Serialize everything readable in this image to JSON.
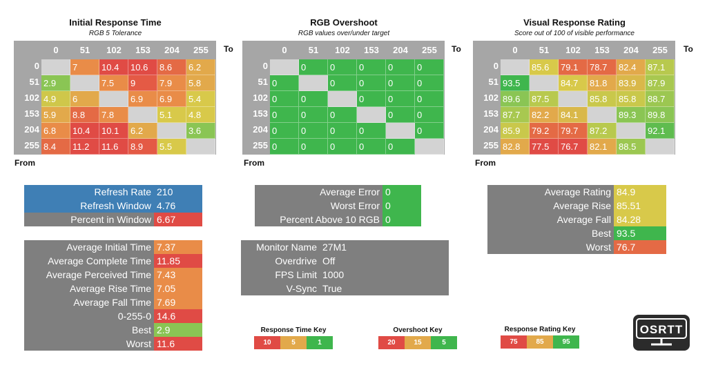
{
  "colors": {
    "header_gray": "#a6a6a6",
    "diag_gray": "#d3d3d3",
    "dark_gray": "#7f7f7f",
    "blue": "#3f7fb5",
    "red": "#e04b45",
    "orange": "#e98c48",
    "amber": "#e2a94b",
    "yellow": "#d8c94a",
    "green": "#3fb64d",
    "lightgreen": "#8ac554"
  },
  "axis": {
    "to": "To",
    "from": "From"
  },
  "chart_data": [
    {
      "type": "heatmap",
      "title": "Initial Response Time",
      "subtitle": "RGB 5 Tolerance",
      "columns": [
        "0",
        "51",
        "102",
        "153",
        "204",
        "255"
      ],
      "rows": [
        "0",
        "51",
        "102",
        "153",
        "204",
        "255"
      ],
      "values": [
        [
          "",
          "7",
          "10.4",
          "10.6",
          "8.6",
          "6.2"
        ],
        [
          "2.9",
          "",
          "7.5",
          "9",
          "7.9",
          "5.8"
        ],
        [
          "4.9",
          "6",
          "",
          "6.9",
          "6.9",
          "5.4"
        ],
        [
          "5.9",
          "8.8",
          "7.8",
          "",
          "5.1",
          "4.8"
        ],
        [
          "6.8",
          "10.4",
          "10.1",
          "6.2",
          "",
          "3.6"
        ],
        [
          "8.4",
          "11.2",
          "11.6",
          "8.9",
          "5.5",
          ""
        ]
      ],
      "colors": [
        [
          "#d3d3d3",
          "#e98c48",
          "#e04b45",
          "#e04b45",
          "#e46a45",
          "#e2a94b"
        ],
        [
          "#8ac554",
          "#d3d3d3",
          "#e98c48",
          "#e45a45",
          "#e98c48",
          "#e2a94b"
        ],
        [
          "#cfc74a",
          "#e2a94b",
          "#d3d3d3",
          "#e98c48",
          "#e98c48",
          "#d8c94a"
        ],
        [
          "#e2a94b",
          "#e46a45",
          "#e98c48",
          "#d3d3d3",
          "#d8c94a",
          "#d8c94a"
        ],
        [
          "#e98c48",
          "#e04b45",
          "#e04b45",
          "#e2a94b",
          "#d3d3d3",
          "#8ac554"
        ],
        [
          "#e46a45",
          "#e04b45",
          "#e04b45",
          "#e45a45",
          "#d8c94a",
          "#d3d3d3"
        ]
      ]
    },
    {
      "type": "heatmap",
      "title": "RGB Overshoot",
      "subtitle": "RGB values over/under target",
      "columns": [
        "0",
        "51",
        "102",
        "153",
        "204",
        "255"
      ],
      "rows": [
        "0",
        "51",
        "102",
        "153",
        "204",
        "255"
      ],
      "values": [
        [
          "",
          "0",
          "0",
          "0",
          "0",
          "0"
        ],
        [
          "0",
          "",
          "0",
          "0",
          "0",
          "0"
        ],
        [
          "0",
          "0",
          "",
          "0",
          "0",
          "0"
        ],
        [
          "0",
          "0",
          "0",
          "",
          "0",
          "0"
        ],
        [
          "0",
          "0",
          "0",
          "0",
          "",
          "0"
        ],
        [
          "0",
          "0",
          "0",
          "0",
          "0",
          ""
        ]
      ],
      "colors": [
        [
          "#d3d3d3",
          "#3fb64d",
          "#3fb64d",
          "#3fb64d",
          "#3fb64d",
          "#3fb64d"
        ],
        [
          "#3fb64d",
          "#d3d3d3",
          "#3fb64d",
          "#3fb64d",
          "#3fb64d",
          "#3fb64d"
        ],
        [
          "#3fb64d",
          "#3fb64d",
          "#d3d3d3",
          "#3fb64d",
          "#3fb64d",
          "#3fb64d"
        ],
        [
          "#3fb64d",
          "#3fb64d",
          "#3fb64d",
          "#d3d3d3",
          "#3fb64d",
          "#3fb64d"
        ],
        [
          "#3fb64d",
          "#3fb64d",
          "#3fb64d",
          "#3fb64d",
          "#d3d3d3",
          "#3fb64d"
        ],
        [
          "#3fb64d",
          "#3fb64d",
          "#3fb64d",
          "#3fb64d",
          "#3fb64d",
          "#d3d3d3"
        ]
      ]
    },
    {
      "type": "heatmap",
      "title": "Visual Response Rating",
      "subtitle": "Score out of 100 of visible performance",
      "columns": [
        "0",
        "51",
        "102",
        "153",
        "204",
        "255"
      ],
      "rows": [
        "0",
        "51",
        "102",
        "153",
        "204",
        "255"
      ],
      "values": [
        [
          "",
          "85.6",
          "79.1",
          "78.7",
          "82.4",
          "87.1"
        ],
        [
          "93.5",
          "",
          "84.7",
          "81.8",
          "83.9",
          "87.9"
        ],
        [
          "89.6",
          "87.5",
          "",
          "85.8",
          "85.8",
          "88.7"
        ],
        [
          "87.7",
          "82.2",
          "84.1",
          "",
          "89.3",
          "89.8"
        ],
        [
          "85.9",
          "79.2",
          "79.7",
          "87.2",
          "",
          "92.1"
        ],
        [
          "82.8",
          "77.5",
          "76.7",
          "82.1",
          "88.5",
          ""
        ]
      ],
      "colors": [
        [
          "#d3d3d3",
          "#d8c94a",
          "#e46a45",
          "#e46a45",
          "#e2a94b",
          "#b8c94e"
        ],
        [
          "#3fb64d",
          "#d3d3d3",
          "#d8c94a",
          "#e2a94b",
          "#d9b84a",
          "#a8c850"
        ],
        [
          "#8ac554",
          "#b8c94e",
          "#d3d3d3",
          "#c9c84b",
          "#c9c84b",
          "#9cc751"
        ],
        [
          "#a8c850",
          "#e2a94b",
          "#d9b84a",
          "#d3d3d3",
          "#8ac554",
          "#8ac554"
        ],
        [
          "#c9c84b",
          "#e46a45",
          "#e46a45",
          "#b8c94e",
          "#d3d3d3",
          "#5fbc4f"
        ],
        [
          "#e2a94b",
          "#e04b45",
          "#e04b45",
          "#e2a94b",
          "#9cc751",
          "#d3d3d3"
        ]
      ]
    }
  ],
  "refresh": [
    {
      "label": "Refresh Rate",
      "value": "210",
      "label_bg": "#3f7fb5",
      "value_bg": "#3f7fb5"
    },
    {
      "label": "Refresh Window",
      "value": "4.76",
      "label_bg": "#3f7fb5",
      "value_bg": "#3f7fb5"
    },
    {
      "label": "Percent in Window",
      "value": "6.67",
      "label_bg": "#7f7f7f",
      "value_bg": "#e04b45"
    }
  ],
  "response_stats": [
    {
      "label": "Average Initial Time",
      "value": "7.37",
      "value_bg": "#e98c48"
    },
    {
      "label": "Average Complete Time",
      "value": "11.85",
      "value_bg": "#e04b45"
    },
    {
      "label": "Average Perceived Time",
      "value": "7.43",
      "value_bg": "#e98c48"
    },
    {
      "label": "Average Rise Time",
      "value": "7.05",
      "value_bg": "#e98c48"
    },
    {
      "label": "Average Fall Time",
      "value": "7.69",
      "value_bg": "#e98c48"
    },
    {
      "label": "0-255-0",
      "value": "14.6",
      "value_bg": "#e04b45"
    },
    {
      "label": "Best",
      "value": "2.9",
      "value_bg": "#8ac554"
    },
    {
      "label": "Worst",
      "value": "11.6",
      "value_bg": "#e04b45"
    }
  ],
  "error_stats": [
    {
      "label": "Average Error",
      "value": "0",
      "value_bg": "#3fb64d"
    },
    {
      "label": "Worst Error",
      "value": "0",
      "value_bg": "#3fb64d"
    },
    {
      "label": "Percent Above 10 RGB",
      "value": "0",
      "value_bg": "#3fb64d"
    }
  ],
  "monitor": [
    {
      "label": "Monitor Name",
      "value": "27M1"
    },
    {
      "label": "Overdrive",
      "value": "Off"
    },
    {
      "label": "FPS Limit",
      "value": "1000"
    },
    {
      "label": "V-Sync",
      "value": "True"
    }
  ],
  "rating_stats": [
    {
      "label": "Average Rating",
      "value": "84.9",
      "value_bg": "#d8c94a"
    },
    {
      "label": "Average Rise",
      "value": "85.51",
      "value_bg": "#d8c94a"
    },
    {
      "label": "Average Fall",
      "value": "84.28",
      "value_bg": "#d8c94a"
    },
    {
      "label": "Best",
      "value": "93.5",
      "value_bg": "#3fb64d"
    },
    {
      "label": "Worst",
      "value": "76.7",
      "value_bg": "#e46a45"
    }
  ],
  "keys": [
    {
      "title": "Response Time Key",
      "items": [
        {
          "label": "10",
          "color": "#e04b45"
        },
        {
          "label": "5",
          "color": "#e2a94b"
        },
        {
          "label": "1",
          "color": "#3fb64d"
        }
      ]
    },
    {
      "title": "Overshoot Key",
      "items": [
        {
          "label": "20",
          "color": "#e04b45"
        },
        {
          "label": "15",
          "color": "#e2a94b"
        },
        {
          "label": "5",
          "color": "#3fb64d"
        }
      ]
    },
    {
      "title": "Response Rating Key",
      "items": [
        {
          "label": "75",
          "color": "#e04b45"
        },
        {
          "label": "85",
          "color": "#e2a94b"
        },
        {
          "label": "95",
          "color": "#3fb64d"
        }
      ]
    }
  ],
  "logo": {
    "text": "OSRTT"
  }
}
